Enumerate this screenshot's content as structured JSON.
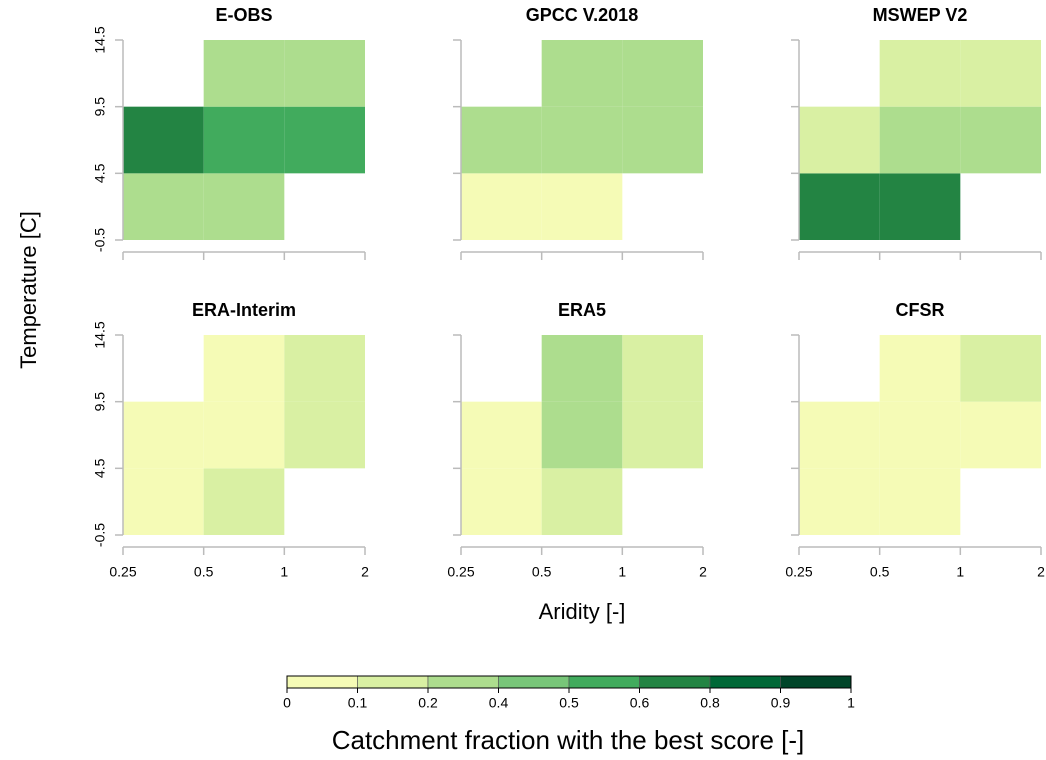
{
  "chart_data": {
    "type": "heatmap",
    "x_label": "Aridity [-]",
    "y_label": "Temperature [C]",
    "xscale": "log",
    "xlim": [
      0.25,
      2
    ],
    "xticks": [
      0.25,
      0.5,
      1,
      2
    ],
    "ylim": [
      -0.5,
      14.5
    ],
    "yticks": [
      -0.5,
      4.5,
      9.5,
      14.5
    ],
    "panels": [
      {
        "title": "E-OBS",
        "values": [
          [
            0.3,
            0.3,
            null
          ],
          [
            0.7,
            0.55,
            0.55
          ],
          [
            null,
            0.3,
            0.3
          ]
        ]
      },
      {
        "title": "GPCC V.2018",
        "values": [
          [
            0.05,
            0.05,
            null
          ],
          [
            0.3,
            0.3,
            0.3
          ],
          [
            null,
            0.3,
            0.3
          ]
        ]
      },
      {
        "title": "MSWEP V2",
        "values": [
          [
            0.7,
            0.7,
            null
          ],
          [
            0.15,
            0.3,
            0.3
          ],
          [
            null,
            0.15,
            0.15
          ]
        ]
      },
      {
        "title": "ERA-Interim",
        "values": [
          [
            0.05,
            0.15,
            null
          ],
          [
            0.05,
            0.05,
            0.15
          ],
          [
            null,
            0.05,
            0.15
          ]
        ]
      },
      {
        "title": "ERA5",
        "values": [
          [
            0.05,
            0.15,
            null
          ],
          [
            0.05,
            0.3,
            0.15
          ],
          [
            null,
            0.3,
            0.15
          ]
        ]
      },
      {
        "title": "CFSR",
        "values": [
          [
            0.05,
            0.05,
            null
          ],
          [
            0.05,
            0.05,
            0.05
          ],
          [
            null,
            0.05,
            0.15
          ]
        ]
      }
    ],
    "colorbar": {
      "label": "Catchment fraction with the best score [-]",
      "ticks": [
        0,
        0.1,
        0.2,
        0.4,
        0.5,
        0.6,
        0.8,
        0.9,
        1
      ],
      "colors": [
        "#f5fbb6",
        "#d9f0a3",
        "#addd8e",
        "#78c679",
        "#41ab5d",
        "#238443",
        "#006837",
        "#004529"
      ]
    }
  }
}
